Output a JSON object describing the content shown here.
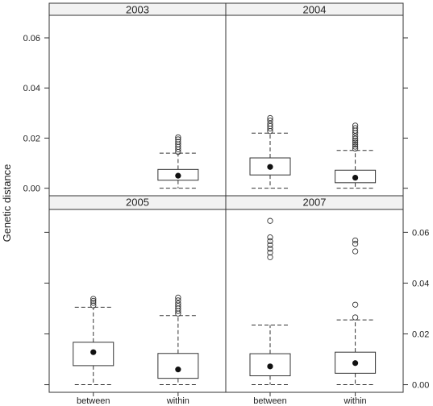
{
  "chart_data": {
    "type": "box",
    "ylabel": "Genetic distance",
    "categories": [
      "between",
      "within"
    ],
    "ylim": [
      -0.003,
      0.069
    ],
    "yticks": [
      {
        "value": 0.0,
        "label": "0.00"
      },
      {
        "value": 0.02,
        "label": "0.02"
      },
      {
        "value": 0.04,
        "label": "0.04"
      },
      {
        "value": 0.06,
        "label": "0.06"
      }
    ],
    "panels": [
      {
        "title": "2003",
        "boxes": [
          {
            "category": "within",
            "whisker_low": 0.0,
            "q1": 0.0032,
            "median": 0.005,
            "q3": 0.0075,
            "whisker_high": 0.014,
            "outliers": [
              0.0145,
              0.0155,
              0.0165,
              0.0175,
              0.0185,
              0.0195,
              0.0203
            ]
          }
        ]
      },
      {
        "title": "2004",
        "boxes": [
          {
            "category": "between",
            "whisker_low": 0.0,
            "q1": 0.0053,
            "median": 0.0085,
            "q3": 0.0121,
            "whisker_high": 0.022,
            "outliers": [
              0.0228,
              0.0238,
              0.0248,
              0.0258,
              0.027,
              0.028
            ]
          },
          {
            "category": "within",
            "whisker_low": 0.0,
            "q1": 0.0022,
            "median": 0.0042,
            "q3": 0.0072,
            "whisker_high": 0.0151,
            "outliers": [
              0.0158,
              0.0166,
              0.0174,
              0.0182,
              0.019,
              0.0198,
              0.0208,
              0.022,
              0.023,
              0.024,
              0.025
            ]
          }
        ]
      },
      {
        "title": "2005",
        "boxes": [
          {
            "category": "between",
            "whisker_low": 0.0,
            "q1": 0.0075,
            "median": 0.0128,
            "q3": 0.0167,
            "whisker_high": 0.0305,
            "outliers": [
              0.0312,
              0.0322,
              0.033,
              0.0338
            ]
          },
          {
            "category": "within",
            "whisker_low": 0.0,
            "q1": 0.0025,
            "median": 0.006,
            "q3": 0.0123,
            "whisker_high": 0.0272,
            "outliers": [
              0.028,
              0.029,
              0.03,
              0.031,
              0.032,
              0.0332,
              0.0343
            ]
          }
        ]
      },
      {
        "title": "2007",
        "boxes": [
          {
            "category": "between",
            "whisker_low": 0.0,
            "q1": 0.0035,
            "median": 0.0072,
            "q3": 0.0122,
            "whisker_high": 0.0235,
            "outliers": [
              0.0502,
              0.052,
              0.0535,
              0.055,
              0.0565,
              0.058,
              0.0645
            ]
          },
          {
            "category": "within",
            "whisker_low": 0.0,
            "q1": 0.0045,
            "median": 0.0085,
            "q3": 0.0128,
            "whisker_high": 0.0255,
            "outliers": [
              0.0265,
              0.0315,
              0.0525,
              0.0555,
              0.0568
            ]
          }
        ]
      }
    ],
    "styles": {
      "strip_fill": "#f2f2f2",
      "frame_color": "#333333",
      "box_color": "#333333",
      "median_color": "#111111"
    }
  }
}
